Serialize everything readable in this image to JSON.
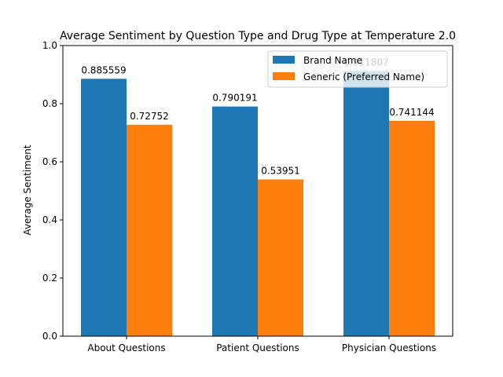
{
  "chart_data": {
    "type": "bar",
    "title": "Average Sentiment by Question Type and Drug Type at Temperature 2.0",
    "xlabel": "",
    "ylabel": "Average Sentiment",
    "ylim": [
      0,
      1.0
    ],
    "yticks": [
      "0.0",
      "0.2",
      "0.4",
      "0.6",
      "0.8",
      "1.0"
    ],
    "categories": [
      "About Questions",
      "Patient Questions",
      "Physician Questions"
    ],
    "series": [
      {
        "name": "Brand Name",
        "color": "#1f77b4",
        "values": [
          0.885559,
          0.790191,
          0.911807
        ],
        "labels": [
          "0.885559",
          "0.790191",
          "0.911807"
        ]
      },
      {
        "name": "Generic (Preferred Name)",
        "color": "#ff7f0e",
        "values": [
          0.72752,
          0.53951,
          0.741144
        ],
        "labels": [
          "0.72752",
          "0.53951",
          "0.741144"
        ]
      }
    ],
    "legend": "top-right",
    "grid": false
  }
}
